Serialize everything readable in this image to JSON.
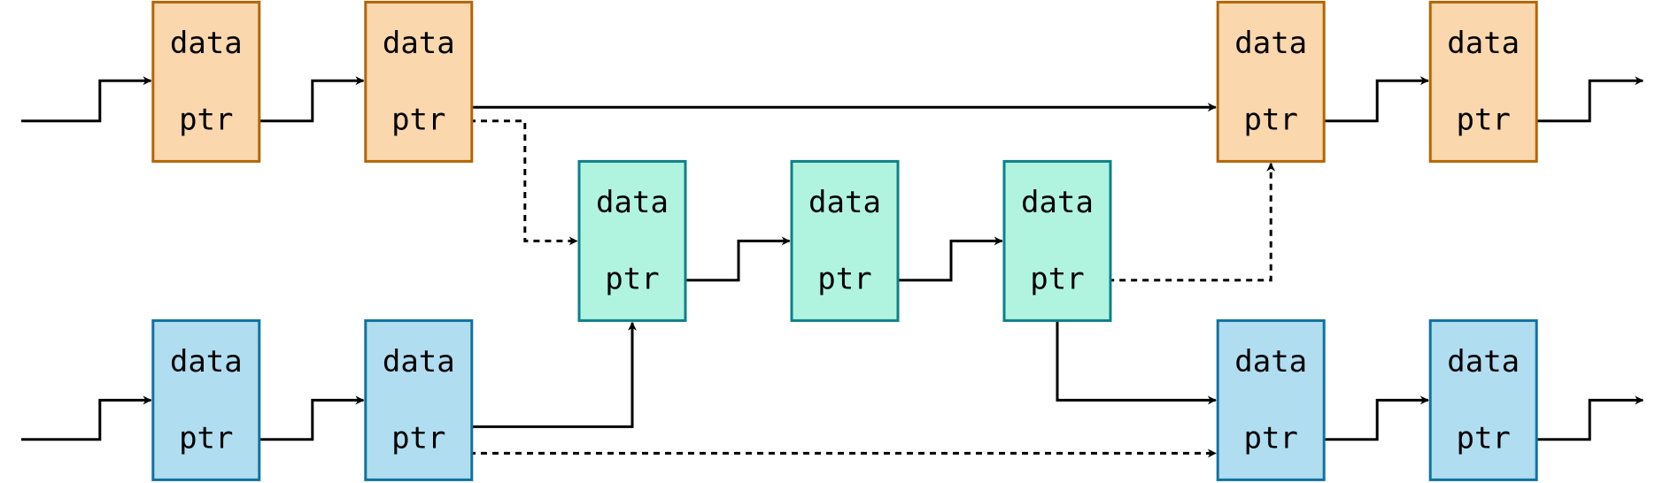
{
  "labels": {
    "data": "data",
    "ptr": "ptr"
  },
  "colors": {
    "orange_fill": "#fad7ac",
    "orange_stroke": "#b46504",
    "green_fill": "#b0f4e0",
    "green_stroke": "#0e8088",
    "blue_fill": "#b1ddf0",
    "blue_stroke": "#10739e",
    "line": "#000000"
  },
  "nodes": [
    {
      "id": "orange-1",
      "group": "orange"
    },
    {
      "id": "orange-2",
      "group": "orange"
    },
    {
      "id": "orange-3",
      "group": "orange"
    },
    {
      "id": "orange-4",
      "group": "orange"
    },
    {
      "id": "green-1",
      "group": "green"
    },
    {
      "id": "green-2",
      "group": "green"
    },
    {
      "id": "green-3",
      "group": "green"
    },
    {
      "id": "blue-1",
      "group": "blue"
    },
    {
      "id": "blue-2",
      "group": "blue"
    },
    {
      "id": "blue-3",
      "group": "blue"
    },
    {
      "id": "blue-4",
      "group": "blue"
    }
  ],
  "edges": [
    {
      "from": "input",
      "to": "orange-1",
      "style": "solid"
    },
    {
      "from": "orange-1",
      "to": "orange-2",
      "style": "solid"
    },
    {
      "from": "orange-2",
      "to": "orange-3",
      "style": "solid"
    },
    {
      "from": "orange-2",
      "to": "green-1",
      "style": "dashed"
    },
    {
      "from": "orange-3",
      "to": "orange-4",
      "style": "solid"
    },
    {
      "from": "orange-4",
      "to": "output",
      "style": "solid"
    },
    {
      "from": "green-1",
      "to": "green-2",
      "style": "solid"
    },
    {
      "from": "green-2",
      "to": "green-3",
      "style": "solid"
    },
    {
      "from": "green-3",
      "to": "orange-3",
      "style": "dashed"
    },
    {
      "from": "green-3",
      "to": "blue-3",
      "style": "solid"
    },
    {
      "from": "input",
      "to": "blue-1",
      "style": "solid"
    },
    {
      "from": "blue-1",
      "to": "blue-2",
      "style": "solid"
    },
    {
      "from": "blue-2",
      "to": "green-1",
      "style": "solid"
    },
    {
      "from": "blue-2",
      "to": "blue-3",
      "style": "dashed"
    },
    {
      "from": "blue-3",
      "to": "blue-4",
      "style": "solid"
    },
    {
      "from": "blue-4",
      "to": "output",
      "style": "solid"
    }
  ]
}
